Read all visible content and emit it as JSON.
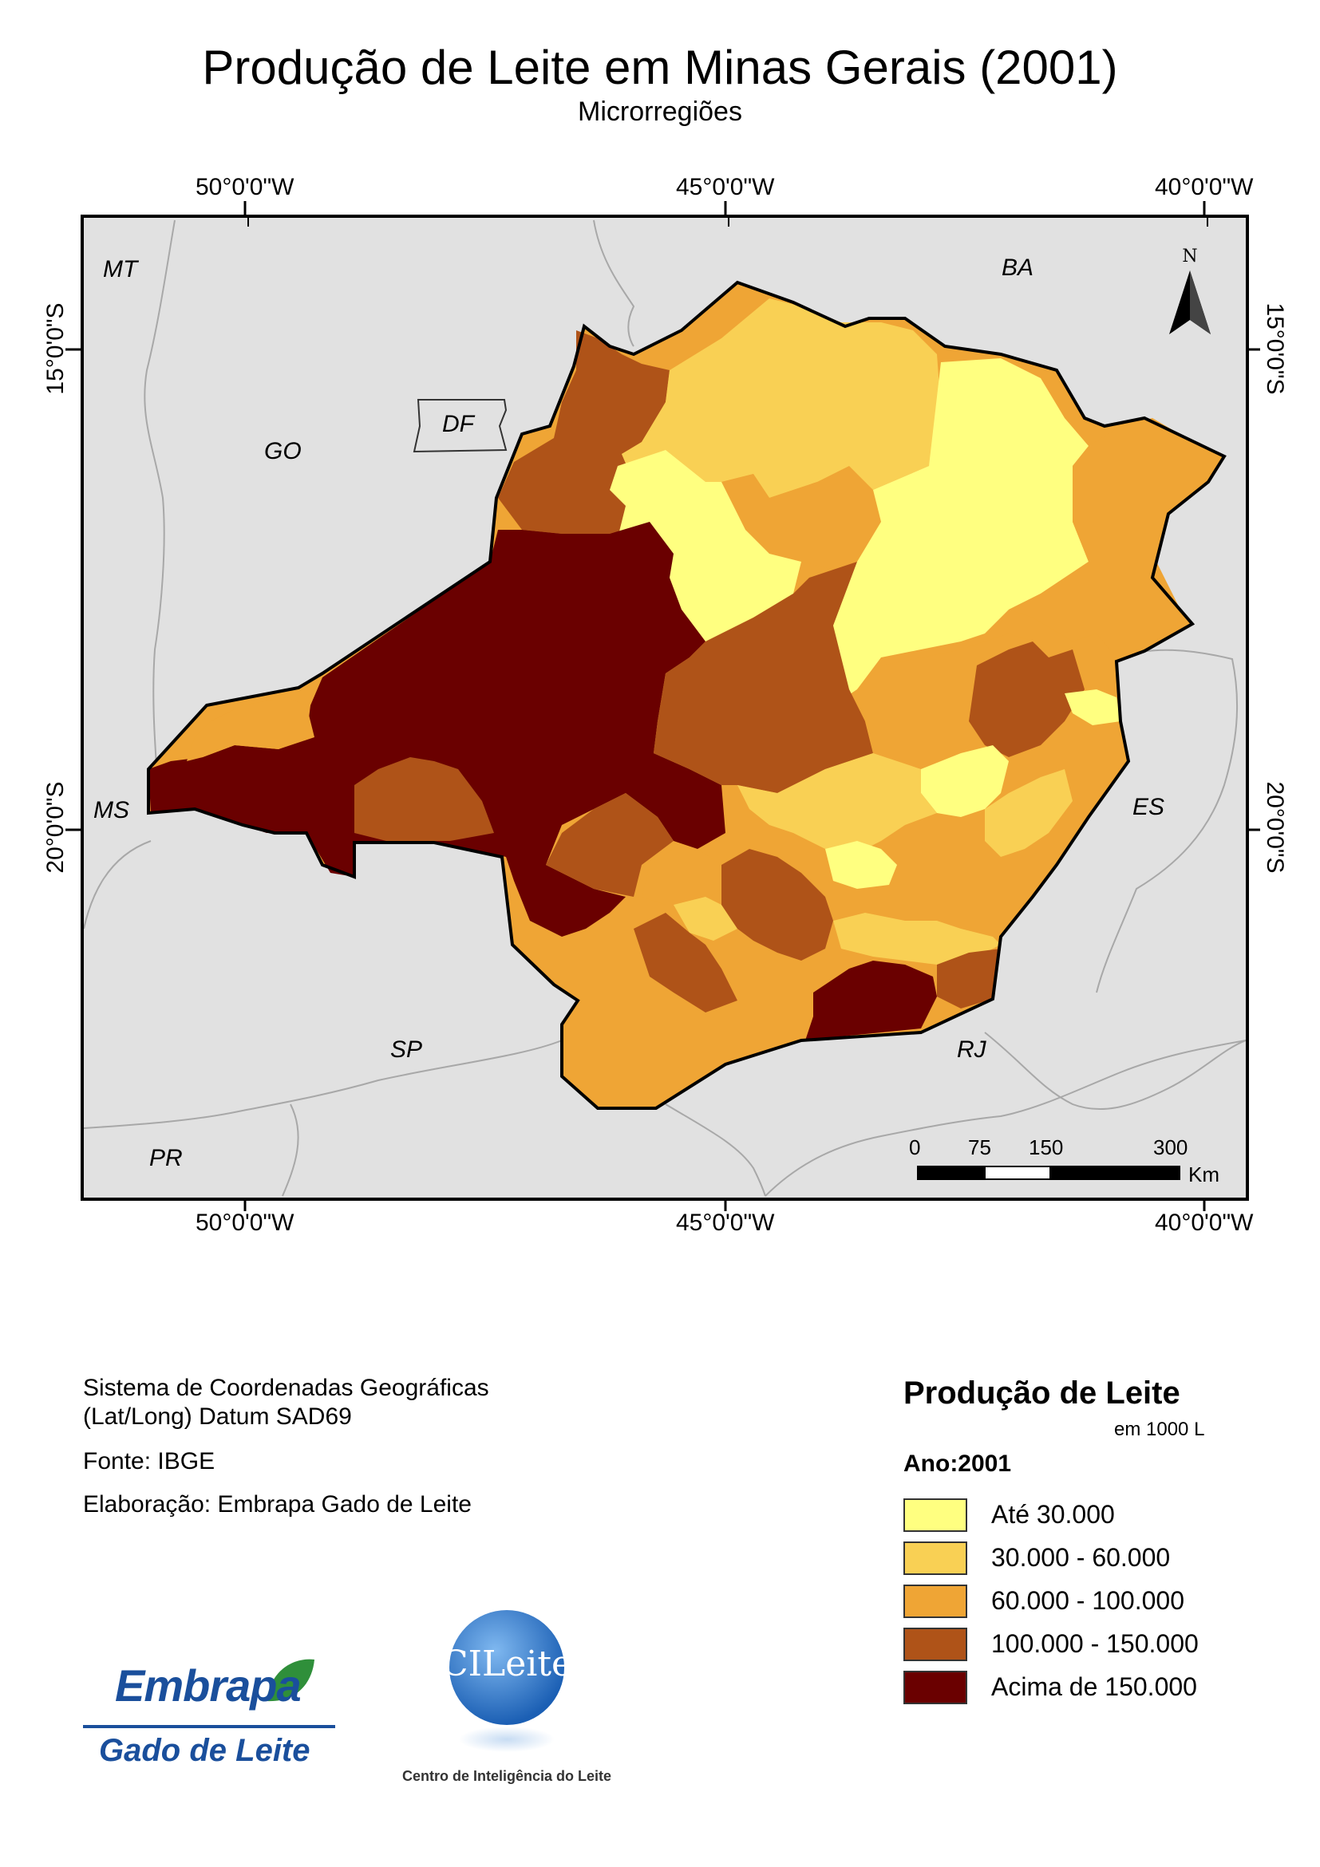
{
  "map": {
    "title": "Produção de Leite em Minas Gerais (2001)",
    "subtitle": "Microrregiões",
    "graticule": {
      "longitudes": [
        "50°0'0\"W",
        "45°0'0\"W",
        "40°0'0\"W"
      ],
      "latitudes": [
        "15°0'0\"S",
        "20°0'0\"S"
      ]
    },
    "neighbor_states": [
      "MT",
      "BA",
      "GO",
      "DF",
      "MS",
      "ES",
      "SP",
      "RJ",
      "PR"
    ],
    "north_arrow_label": "N",
    "scale_bar": {
      "ticks": [
        "0",
        "75",
        "150",
        "300"
      ],
      "unit": "Km"
    }
  },
  "colors": {
    "class_1": "#ffff80",
    "class_2": "#f9d054",
    "class_3": "#efa535",
    "class_4": "#af5318",
    "class_5": "#6a0000",
    "background": "#e1e1e1"
  },
  "info": {
    "line1": "Sistema de Coordenadas Geográficas",
    "line2": "(Lat/Long) Datum SAD69",
    "source": "Fonte: IBGE",
    "author": "Elaboração: Embrapa Gado de Leite"
  },
  "legend": {
    "title": "Produção de Leite",
    "unit": "em 1000 L",
    "year_label": "Ano:2001",
    "classes": [
      {
        "label": "Até 30.000",
        "color": "#ffff80"
      },
      {
        "label": "30.000 - 60.000",
        "color": "#f9d054"
      },
      {
        "label": "60.000 - 100.000",
        "color": "#efa535"
      },
      {
        "label": "100.000 - 150.000",
        "color": "#af5318"
      },
      {
        "label": "Acima de 150.000",
        "color": "#6a0000"
      }
    ]
  },
  "logos": {
    "embrapa_line1": "Embrapa",
    "embrapa_line2": "Gado de Leite",
    "cileite_name": "CILeite",
    "cileite_caption": "Centro de Inteligência do Leite"
  }
}
